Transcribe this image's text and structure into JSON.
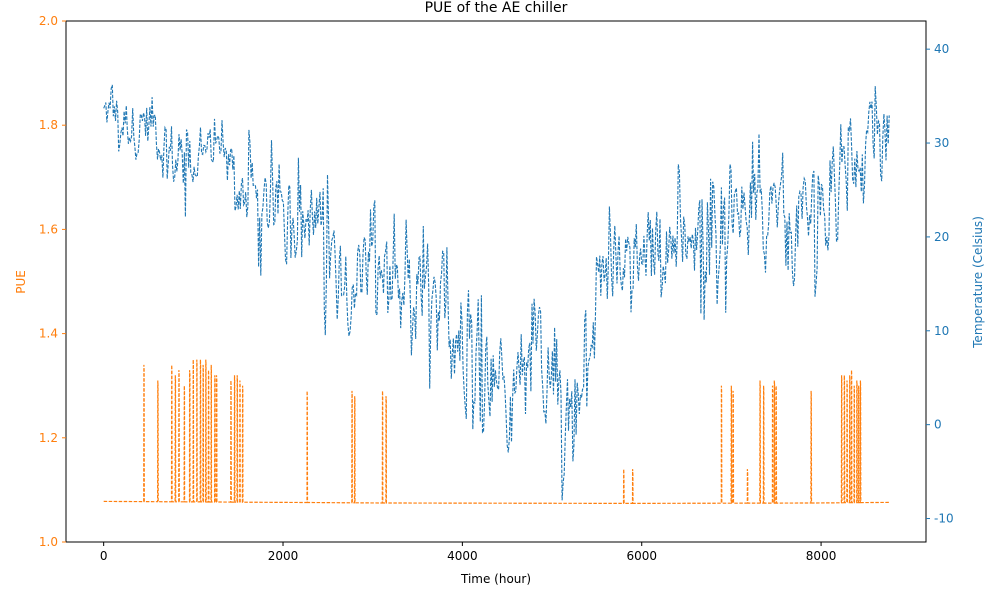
{
  "chart_data": {
    "type": "line",
    "title": "PUE of the AE chiller",
    "xlabel": "Time (hour)",
    "ylabel": "PUE",
    "y2label": "Temperature (Celsius)",
    "xlim": [
      -420,
      9170
    ],
    "ylim": [
      1.0,
      2.0
    ],
    "y2lim": [
      -12.5,
      43
    ],
    "xticks": [
      0,
      2000,
      4000,
      6000,
      8000
    ],
    "yticks": [
      1.0,
      1.2,
      1.4,
      1.6,
      1.8,
      2.0
    ],
    "y2ticks": [
      -10,
      0,
      10,
      20,
      30,
      40
    ],
    "grid": false,
    "legend": "none",
    "series": [
      {
        "name": "PUE",
        "axis": "left",
        "color": "#ff7f0e",
        "style": "dashed",
        "baseline": [
          [
            0,
            1.078
          ],
          [
            2000,
            1.076
          ],
          [
            4000,
            1.074
          ],
          [
            6000,
            1.074
          ],
          [
            8000,
            1.075
          ],
          [
            8760,
            1.076
          ]
        ],
        "spikes": [
          [
            450,
            1.34
          ],
          [
            605,
            1.31
          ],
          [
            760,
            1.34
          ],
          [
            800,
            1.32
          ],
          [
            840,
            1.33
          ],
          [
            900,
            1.3
          ],
          [
            960,
            1.33
          ],
          [
            1000,
            1.35
          ],
          [
            1040,
            1.35
          ],
          [
            1080,
            1.35
          ],
          [
            1110,
            1.34
          ],
          [
            1140,
            1.35
          ],
          [
            1170,
            1.33
          ],
          [
            1200,
            1.34
          ],
          [
            1240,
            1.32
          ],
          [
            1260,
            1.32
          ],
          [
            1420,
            1.31
          ],
          [
            1460,
            1.32
          ],
          [
            1490,
            1.32
          ],
          [
            1520,
            1.31
          ],
          [
            1550,
            1.3
          ],
          [
            2270,
            1.29
          ],
          [
            2770,
            1.29
          ],
          [
            2800,
            1.28
          ],
          [
            3110,
            1.29
          ],
          [
            3150,
            1.28
          ],
          [
            5800,
            1.14
          ],
          [
            5900,
            1.14
          ],
          [
            6890,
            1.3
          ],
          [
            7000,
            1.3
          ],
          [
            7020,
            1.29
          ],
          [
            7180,
            1.14
          ],
          [
            7320,
            1.31
          ],
          [
            7360,
            1.3
          ],
          [
            7460,
            1.3
          ],
          [
            7480,
            1.31
          ],
          [
            7500,
            1.3
          ],
          [
            7890,
            1.29
          ],
          [
            8230,
            1.32
          ],
          [
            8260,
            1.32
          ],
          [
            8290,
            1.31
          ],
          [
            8320,
            1.32
          ],
          [
            8340,
            1.33
          ],
          [
            8370,
            1.3
          ],
          [
            8400,
            1.31
          ],
          [
            8420,
            1.3
          ],
          [
            8440,
            1.31
          ]
        ]
      },
      {
        "name": "Temperature",
        "axis": "right",
        "color": "#1f77b4",
        "style": "dashed",
        "envelope": [
          {
            "x": 0,
            "lo": 28,
            "hi": 38
          },
          {
            "x": 300,
            "lo": 27,
            "hi": 38
          },
          {
            "x": 600,
            "lo": 25,
            "hi": 39
          },
          {
            "x": 850,
            "lo": 19,
            "hi": 35
          },
          {
            "x": 1100,
            "lo": 24,
            "hi": 34
          },
          {
            "x": 1400,
            "lo": 24,
            "hi": 33
          },
          {
            "x": 1700,
            "lo": 14,
            "hi": 31
          },
          {
            "x": 2000,
            "lo": 15,
            "hi": 30
          },
          {
            "x": 2300,
            "lo": 14,
            "hi": 30
          },
          {
            "x": 2600,
            "lo": 6,
            "hi": 26
          },
          {
            "x": 3000,
            "lo": 10,
            "hi": 25
          },
          {
            "x": 3400,
            "lo": 2,
            "hi": 22
          },
          {
            "x": 3800,
            "lo": 0,
            "hi": 24
          },
          {
            "x": 4200,
            "lo": -2,
            "hi": 20
          },
          {
            "x": 4500,
            "lo": -5,
            "hi": 11
          },
          {
            "x": 4800,
            "lo": 0,
            "hi": 15
          },
          {
            "x": 5100,
            "lo": -9,
            "hi": 16
          },
          {
            "x": 5350,
            "lo": -8,
            "hi": 12
          },
          {
            "x": 5600,
            "lo": 10,
            "hi": 24
          },
          {
            "x": 6000,
            "lo": 10,
            "hi": 27
          },
          {
            "x": 6400,
            "lo": 15,
            "hi": 29
          },
          {
            "x": 6800,
            "lo": 9,
            "hi": 27
          },
          {
            "x": 7200,
            "lo": 16,
            "hi": 31
          },
          {
            "x": 7600,
            "lo": 10,
            "hi": 31
          },
          {
            "x": 8000,
            "lo": 14,
            "hi": 31
          },
          {
            "x": 8400,
            "lo": 21,
            "hi": 35
          },
          {
            "x": 8760,
            "lo": 24,
            "hi": 37
          }
        ]
      }
    ]
  }
}
